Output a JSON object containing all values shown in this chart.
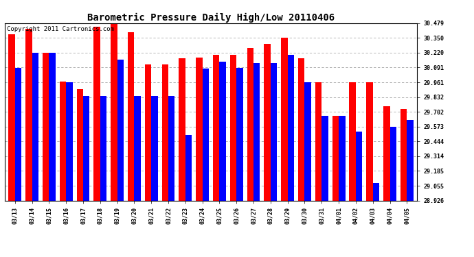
{
  "title": "Barometric Pressure Daily High/Low 20110406",
  "copyright": "Copyright 2011 Cartronics.com",
  "dates": [
    "03/13",
    "03/14",
    "03/15",
    "03/16",
    "03/17",
    "03/18",
    "03/19",
    "03/20",
    "03/21",
    "03/22",
    "03/23",
    "03/24",
    "03/25",
    "03/26",
    "03/27",
    "03/28",
    "03/29",
    "03/30",
    "03/31",
    "04/01",
    "04/02",
    "04/03",
    "04/04",
    "04/05"
  ],
  "highs": [
    30.38,
    30.43,
    30.22,
    29.97,
    29.9,
    30.45,
    30.47,
    30.4,
    30.12,
    30.12,
    30.17,
    30.18,
    30.2,
    30.2,
    30.26,
    30.3,
    30.35,
    30.17,
    29.96,
    29.67,
    29.96,
    29.96,
    29.75,
    29.73
  ],
  "lows": [
    30.09,
    30.22,
    30.22,
    29.96,
    29.84,
    29.84,
    30.16,
    29.84,
    29.84,
    29.84,
    29.5,
    30.08,
    30.14,
    30.09,
    30.13,
    30.13,
    30.2,
    29.96,
    29.67,
    29.67,
    29.53,
    29.08,
    29.57,
    29.63
  ],
  "yticks": [
    28.926,
    29.055,
    29.185,
    29.314,
    29.444,
    29.573,
    29.702,
    29.832,
    29.961,
    30.091,
    30.22,
    30.35,
    30.479
  ],
  "ymin": 28.926,
  "ymax": 30.479,
  "bar_color_high": "#ff0000",
  "bar_color_low": "#0000ff",
  "bg_color": "#ffffff",
  "grid_color": "#aaaaaa",
  "title_fontsize": 10,
  "tick_fontsize": 6,
  "copyright_fontsize": 6.5
}
